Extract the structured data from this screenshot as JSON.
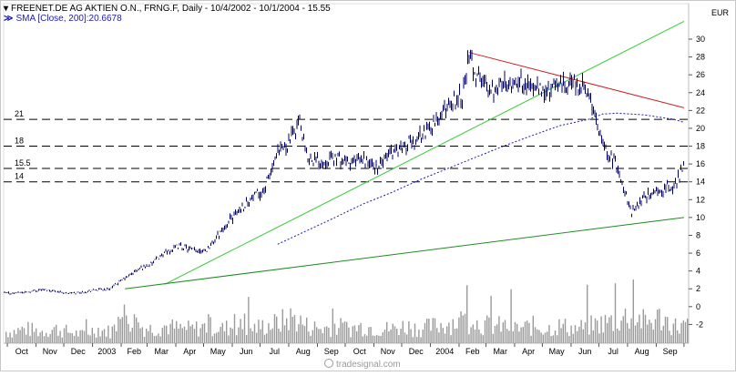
{
  "header": {
    "title": "FREENET.DE AG AKTIEN O.N., FRNG.F, Daily - 10/4/2002 - 10/1/2004 - 15.55",
    "indicator": "SMA [Close, 200]:20.6678"
  },
  "currency_label": "EUR",
  "watermark": "tradesignal.com",
  "colors": {
    "price": "#000066",
    "sma": "#1c1cb4",
    "uptrend": "#33cc33",
    "resistance": "#cc2222",
    "support": "#1e8c1e",
    "volume": "#9a9a9a",
    "reference_line": "#000000"
  },
  "chart_data": {
    "type": "line",
    "title": "FREENET.DE AG AKTIEN O.N., FRNG.F, Daily - 10/4/2002 - 10/1/2004 - 15.55",
    "xlabel": "",
    "ylabel": "",
    "ylim": [
      -4,
      32
    ],
    "grid": false,
    "x_ticks": [
      "Oct",
      "Nov",
      "Dec",
      "2003",
      "Feb",
      "Mar",
      "Apr",
      "May",
      "Jun",
      "Jul",
      "Aug",
      "Sep",
      "Oct",
      "Nov",
      "Dec",
      "2004",
      "Feb",
      "Mar",
      "Apr",
      "May",
      "Jun",
      "Jul",
      "Aug",
      "Sep"
    ],
    "y_ticks": [
      -2,
      0,
      2,
      4,
      6,
      8,
      10,
      12,
      14,
      16,
      18,
      20,
      22,
      24,
      26,
      28,
      30
    ],
    "horizontal_lines": [
      {
        "label": "21",
        "value": 21
      },
      {
        "label": "18",
        "value": 18
      },
      {
        "label": "15.5",
        "value": 15.5
      },
      {
        "label": "14",
        "value": 14
      }
    ],
    "series": [
      {
        "name": "FREENET.DE AG AKTIEN O.N.",
        "style": "ohlc-bars",
        "x": [
          "2002-10-04",
          "2002-10-20",
          "2002-11-05",
          "2002-11-20",
          "2002-12-05",
          "2002-12-20",
          "2003-01-05",
          "2003-01-20",
          "2003-02-05",
          "2003-02-20",
          "2003-03-05",
          "2003-03-20",
          "2003-04-05",
          "2003-04-20",
          "2003-05-05",
          "2003-05-20",
          "2003-06-05",
          "2003-06-20",
          "2003-07-05",
          "2003-07-20",
          "2003-08-05",
          "2003-08-12",
          "2003-08-20",
          "2003-09-05",
          "2003-09-20",
          "2003-10-05",
          "2003-10-20",
          "2003-11-05",
          "2003-11-20",
          "2003-12-05",
          "2003-12-20",
          "2004-01-05",
          "2004-01-20",
          "2004-02-05",
          "2004-02-12",
          "2004-02-20",
          "2004-03-05",
          "2004-03-20",
          "2004-04-05",
          "2004-04-20",
          "2004-05-05",
          "2004-05-20",
          "2004-06-05",
          "2004-06-20",
          "2004-07-05",
          "2004-07-20",
          "2004-08-05",
          "2004-08-20",
          "2004-09-05",
          "2004-09-20",
          "2004-10-01"
        ],
        "y": [
          1.5,
          1.6,
          1.9,
          1.8,
          1.5,
          1.6,
          1.9,
          2.0,
          3.2,
          4.2,
          4.8,
          6.0,
          6.8,
          6.3,
          6.4,
          8.5,
          10.5,
          12.0,
          13.0,
          17.0,
          19.0,
          21.0,
          17.0,
          16.2,
          16.8,
          16.0,
          16.5,
          15.5,
          17.5,
          18.0,
          19.0,
          20.5,
          22.5,
          24.0,
          28.0,
          26.0,
          24.5,
          25.0,
          25.5,
          24.5,
          24.0,
          25.0,
          25.0,
          24.0,
          18.0,
          16.0,
          10.5,
          12.5,
          13.0,
          13.5,
          15.55
        ]
      },
      {
        "name": "SMA [Close, 200]",
        "style": "dotted",
        "x": [
          "2003-07-20",
          "2003-08-20",
          "2003-09-20",
          "2003-10-20",
          "2003-11-20",
          "2003-12-20",
          "2004-01-20",
          "2004-02-20",
          "2004-03-20",
          "2004-04-20",
          "2004-05-20",
          "2004-06-20",
          "2004-07-05",
          "2004-07-20",
          "2004-08-20",
          "2004-09-20",
          "2004-10-01"
        ],
        "y": [
          7.0,
          8.5,
          10.0,
          11.5,
          12.8,
          14.2,
          15.5,
          16.8,
          18.0,
          19.2,
          20.3,
          21.0,
          21.6,
          21.7,
          21.5,
          21.0,
          20.67
        ]
      }
    ],
    "trendlines": [
      {
        "name": "uptrend",
        "from": {
          "x": "2003-03-20",
          "y": 2.5
        },
        "to": {
          "x": "2004-10-01",
          "y": 32.0
        }
      },
      {
        "name": "resistance",
        "from": {
          "x": "2004-02-12",
          "y": 28.5
        },
        "to": {
          "x": "2004-10-01",
          "y": 22.3
        }
      },
      {
        "name": "support",
        "from": {
          "x": "2003-02-05",
          "y": 2.0
        },
        "to": {
          "x": "2004-10-01",
          "y": 10.0
        }
      }
    ],
    "volume": {
      "style": "bars",
      "x": [
        "2002-10-05",
        "2002-10-20",
        "2002-11-05",
        "2002-11-20",
        "2002-12-05",
        "2002-12-20",
        "2003-01-05",
        "2003-01-20",
        "2003-02-05",
        "2003-02-20",
        "2003-03-05",
        "2003-03-20",
        "2003-04-05",
        "2003-04-20",
        "2003-05-05",
        "2003-05-20",
        "2003-06-05",
        "2003-06-20",
        "2003-07-05",
        "2003-07-20",
        "2003-08-05",
        "2003-08-20",
        "2003-09-05",
        "2003-09-20",
        "2003-10-05",
        "2003-10-20",
        "2003-11-05",
        "2003-11-20",
        "2003-12-05",
        "2003-12-20",
        "2004-01-05",
        "2004-01-20",
        "2004-02-05",
        "2004-02-20",
        "2004-03-05",
        "2004-03-20",
        "2004-04-05",
        "2004-04-20",
        "2004-05-05",
        "2004-05-20",
        "2004-06-05",
        "2004-06-20",
        "2004-07-05",
        "2004-07-20",
        "2004-08-05",
        "2004-08-20",
        "2004-09-05",
        "2004-09-20"
      ],
      "values": [
        0.4,
        0.5,
        0.4,
        0.5,
        0.4,
        0.3,
        0.5,
        0.4,
        1.0,
        0.6,
        0.5,
        0.6,
        0.5,
        0.5,
        0.6,
        0.5,
        0.6,
        0.5,
        0.6,
        0.7,
        0.9,
        0.6,
        0.5,
        0.6,
        0.5,
        0.6,
        0.5,
        0.5,
        0.6,
        0.5,
        0.6,
        0.7,
        0.8,
        0.7,
        0.6,
        0.6,
        0.5,
        0.6,
        0.5,
        0.6,
        0.5,
        0.6,
        0.7,
        0.8,
        1.0,
        0.7,
        0.9,
        0.6
      ]
    }
  }
}
